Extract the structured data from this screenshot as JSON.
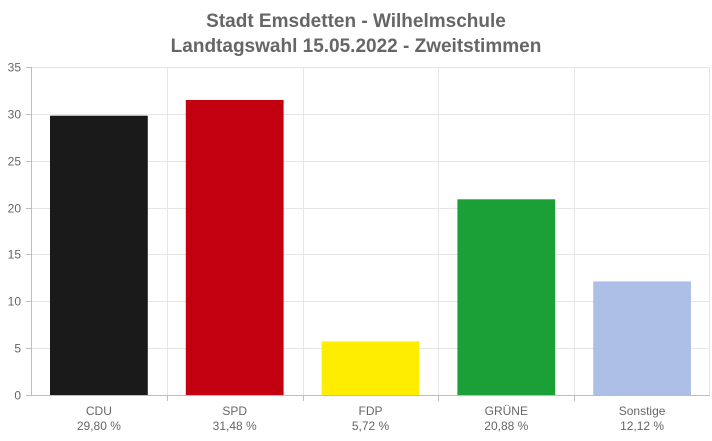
{
  "chart_data": {
    "type": "bar",
    "title": "Stadt Emsdetten - Wilhelmschule",
    "subtitle": "Landtagswahl 15.05.2022  - Zweitstimmen",
    "categories": [
      "CDU",
      "SPD",
      "FDP",
      "GRÜNE",
      "Sonstige"
    ],
    "value_labels": [
      "29,80 %",
      "31,48 %",
      "5,72 %",
      "20,88 %",
      "12,12 %"
    ],
    "values": [
      29.8,
      31.48,
      5.72,
      20.88,
      12.12
    ],
    "colors": [
      "#1a1a1a",
      "#c3000f",
      "#ffed00",
      "#1aa037",
      "#adbfe6"
    ],
    "ylim": [
      0,
      35
    ],
    "yticks": [
      "0",
      "5",
      "10",
      "15",
      "20",
      "25",
      "30",
      "35"
    ],
    "grid": true,
    "legend": "none"
  }
}
